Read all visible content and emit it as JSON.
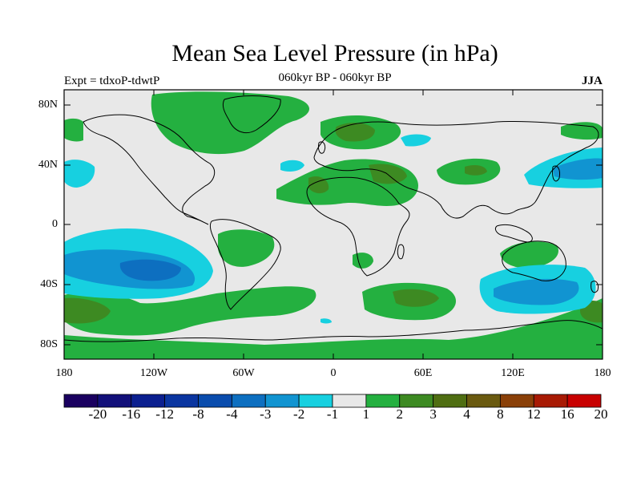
{
  "title": "Mean Sea Level Pressure (in hPa)",
  "subtitle": "060kyr BP - 060kyr BP",
  "experiment": "Expt = tdxoP-tdwtP",
  "season": "JJA",
  "lat_labels": [
    "80N",
    "40N",
    "0",
    "40S",
    "80S"
  ],
  "lon_labels": [
    "180",
    "120W",
    "60W",
    "0",
    "60E",
    "120E",
    "180"
  ],
  "colorbar": {
    "labels": [
      "-20",
      "-16",
      "-12",
      "-8",
      "-4",
      "-3",
      "-2",
      "-1",
      "1",
      "2",
      "3",
      "4",
      "8",
      "12",
      "16",
      "20"
    ],
    "colors": [
      "#1a0060",
      "#12107a",
      "#0b1f8f",
      "#0a35a0",
      "#0a4cad",
      "#0d6fc0",
      "#1194d1",
      "#17d0e0",
      "#e8e8e8",
      "#24b040",
      "#3d8a22",
      "#4f6e12",
      "#6a5a10",
      "#8a4008",
      "#a81a04",
      "#c80000"
    ]
  },
  "colors": {
    "ocean_background": "#e8e8e8",
    "coastline": "#000000",
    "positive_1_2": "#24b040",
    "positive_2_3": "#3d8a22",
    "positive_3_4": "#4f6e12",
    "negative_1_2": "#17d0e0",
    "negative_2_3": "#1194d1",
    "negative_3_4": "#0d6fc0"
  }
}
